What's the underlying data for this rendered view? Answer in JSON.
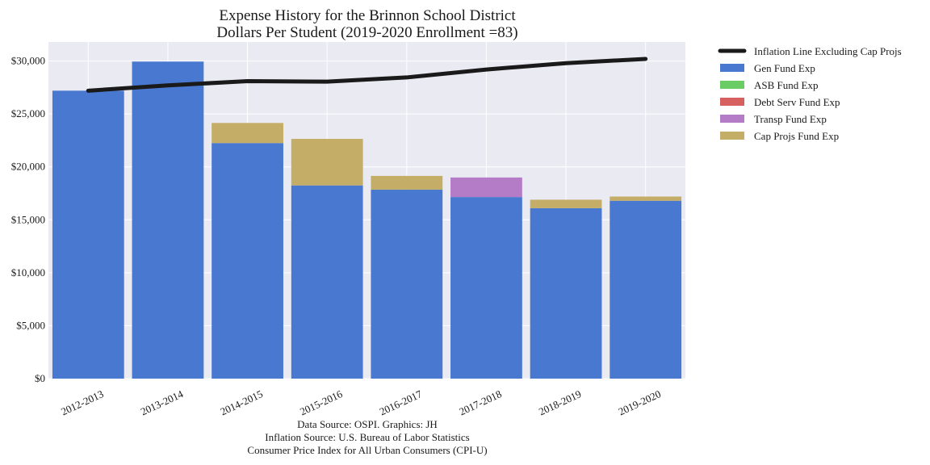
{
  "chart_data": {
    "type": "bar",
    "stacked": true,
    "title_line1": "Expense History for the Brinnon School District",
    "title_line2": "Dollars Per Student (2019-2020 Enrollment =83)",
    "categories": [
      "2012-2013",
      "2013-2014",
      "2014-2015",
      "2015-2016",
      "2016-2017",
      "2017-2018",
      "2018-2019",
      "2019-2020"
    ],
    "series": [
      {
        "name": "Gen Fund Exp",
        "color": "#4878cf",
        "values": [
          27200,
          29950,
          22250,
          18250,
          17850,
          17150,
          16100,
          16800
        ]
      },
      {
        "name": "ASB Fund Exp",
        "color": "#6acc65",
        "values": [
          0,
          0,
          0,
          0,
          0,
          0,
          0,
          0
        ]
      },
      {
        "name": "Debt Serv Fund Exp",
        "color": "#d65f5f",
        "values": [
          0,
          0,
          0,
          0,
          0,
          0,
          0,
          0
        ]
      },
      {
        "name": "Transp Fund Exp",
        "color": "#b47cc7",
        "values": [
          0,
          0,
          0,
          0,
          0,
          1850,
          0,
          0
        ]
      },
      {
        "name": "Cap Projs Fund Exp",
        "color": "#c4ad66",
        "values": [
          0,
          0,
          1900,
          4400,
          1300,
          0,
          800,
          400
        ]
      }
    ],
    "line": {
      "name": "Inflation Line Excluding Cap Projs",
      "color": "#1a1a1a",
      "values": [
        27200,
        27700,
        28100,
        28050,
        28450,
        29200,
        29800,
        30200
      ]
    },
    "ylim": [
      0,
      31800
    ],
    "yticks": [
      0,
      5000,
      10000,
      15000,
      20000,
      25000,
      30000
    ],
    "ytick_labels": [
      "$0",
      "$5,000",
      "$10,000",
      "$15,000",
      "$20,000",
      "$25,000",
      "$30,000"
    ],
    "grid": true,
    "legend_position": "outside-right",
    "plot_background": "#eaeaf2"
  },
  "footer": {
    "line1": "Data Source: OSPI. Graphics: JH",
    "line2": "Inflation Source: U.S. Bureau of Labor Statistics",
    "line3": "Consumer Price Index for All Urban Consumers (CPI-U)"
  }
}
